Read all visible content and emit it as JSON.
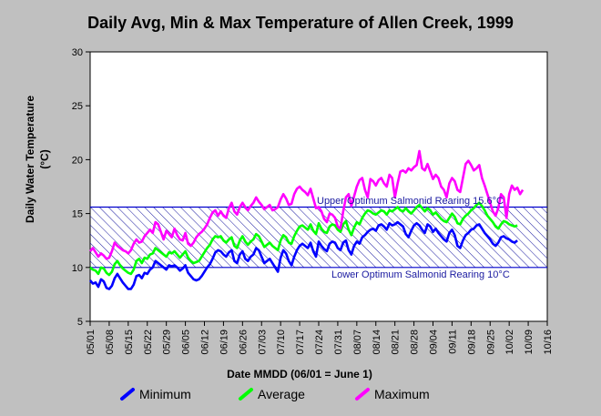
{
  "chart_data": {
    "type": "line",
    "title": "Daily Avg, Min & Max Temperature of Allen Creek, 1999",
    "xlabel": "Date MMDD (06/01 = June 1)",
    "ylabel_line1": "Daily Water Temperature",
    "ylabel_line2": "(°C)",
    "ylim": [
      5,
      30
    ],
    "yticks": [
      "5",
      "10",
      "15",
      "20",
      "25",
      "30"
    ],
    "xticks": [
      "05/01",
      "05/08",
      "05/15",
      "05/22",
      "05/29",
      "06/05",
      "06/12",
      "06/19",
      "06/26",
      "07/03",
      "07/10",
      "07/17",
      "07/24",
      "07/31",
      "08/07",
      "08/14",
      "08/21",
      "08/28",
      "09/04",
      "09/11",
      "09/18",
      "09/25",
      "10/02",
      "10/09",
      "10/16"
    ],
    "grid": false,
    "legend_position": "bottom",
    "band": {
      "lower": 10,
      "upper": 15.6,
      "upper_label": "Upper Optimum Salmonid Rearing 15.6°C",
      "lower_label": "Lower Optimum Salmonid Rearing 10°C",
      "color": "#0000cc"
    },
    "x_start": "05/01",
    "series": [
      {
        "name": "Minimum",
        "color": "#0000ff",
        "values": [
          8.8,
          8.5,
          8.6,
          8.2,
          8.9,
          8.7,
          8.1,
          8.0,
          8.3,
          9.0,
          9.4,
          9.0,
          8.6,
          8.3,
          8.0,
          8.0,
          8.4,
          9.2,
          9.3,
          9.0,
          9.5,
          9.4,
          9.8,
          10.0,
          10.6,
          10.4,
          10.2,
          10.0,
          9.8,
          10.2,
          10.1,
          10.2,
          10.0,
          9.7,
          9.9,
          10.2,
          9.5,
          9.2,
          8.9,
          8.8,
          8.9,
          9.2,
          9.6,
          10.0,
          10.3,
          10.8,
          11.4,
          11.6,
          11.5,
          11.2,
          11.0,
          11.4,
          11.6,
          10.6,
          10.4,
          11.2,
          11.5,
          10.8,
          10.6,
          11.0,
          11.2,
          11.8,
          11.6,
          11.0,
          10.4,
          10.6,
          10.8,
          10.4,
          10.0,
          9.6,
          10.9,
          11.6,
          11.3,
          10.6,
          10.2,
          11.0,
          11.6,
          12.0,
          12.2,
          12.0,
          11.8,
          12.3,
          11.5,
          11.0,
          12.4,
          12.0,
          11.7,
          11.5,
          12.2,
          12.4,
          12.3,
          11.8,
          11.6,
          12.3,
          12.5,
          11.6,
          11.2,
          12.0,
          12.4,
          12.2,
          12.8,
          13.0,
          13.3,
          13.5,
          13.6,
          13.4,
          13.9,
          14.0,
          13.8,
          13.5,
          14.1,
          13.9,
          14.0,
          14.2,
          14.0,
          13.8,
          13.1,
          12.8,
          13.4,
          13.9,
          14.1,
          13.9,
          13.5,
          13.2,
          14.0,
          13.8,
          13.3,
          13.6,
          13.2,
          12.9,
          12.6,
          12.4,
          13.2,
          13.5,
          13.0,
          12.0,
          11.8,
          12.5,
          13.0,
          13.2,
          13.5,
          13.6,
          13.9,
          14.0,
          13.6,
          13.2,
          12.9,
          12.6,
          12.2,
          12.0,
          12.3,
          12.8,
          12.9,
          12.7,
          12.6,
          12.4,
          12.3,
          12.5
        ]
      },
      {
        "name": "Average",
        "color": "#00ff00",
        "values": [
          10.0,
          9.8,
          9.7,
          9.4,
          10.0,
          9.9,
          9.5,
          9.3,
          9.6,
          10.3,
          10.6,
          10.2,
          9.9,
          9.7,
          9.5,
          9.4,
          9.8,
          10.6,
          10.8,
          10.4,
          10.9,
          10.8,
          11.2,
          11.3,
          11.8,
          11.6,
          11.4,
          11.2,
          11.0,
          11.4,
          11.3,
          11.5,
          11.2,
          10.9,
          11.2,
          11.5,
          10.9,
          10.6,
          10.4,
          10.5,
          10.6,
          11.0,
          11.4,
          11.8,
          12.1,
          12.6,
          12.9,
          12.8,
          12.9,
          12.5,
          12.3,
          12.6,
          12.8,
          12.0,
          11.8,
          12.5,
          12.9,
          12.4,
          12.1,
          12.4,
          12.6,
          13.1,
          12.9,
          12.4,
          11.9,
          12.1,
          12.3,
          12.0,
          11.8,
          11.6,
          12.5,
          13.0,
          12.8,
          12.3,
          12.2,
          12.9,
          13.4,
          13.8,
          13.9,
          13.7,
          13.5,
          14.0,
          13.4,
          13.1,
          14.1,
          13.6,
          13.3,
          13.2,
          13.8,
          14.0,
          13.9,
          13.5,
          13.3,
          14.0,
          14.3,
          13.5,
          13.0,
          13.7,
          14.2,
          14.0,
          14.6,
          15.0,
          15.3,
          15.2,
          15.0,
          14.9,
          15.1,
          15.3,
          15.2,
          14.9,
          15.3,
          15.2,
          15.4,
          15.6,
          15.3,
          15.2,
          15.5,
          15.2,
          15.0,
          15.3,
          15.6,
          15.8,
          15.5,
          15.2,
          15.5,
          15.3,
          14.9,
          15.1,
          14.8,
          14.5,
          14.3,
          14.2,
          14.6,
          15.0,
          14.7,
          14.1,
          14.0,
          14.5,
          14.8,
          15.0,
          15.3,
          15.5,
          15.8,
          16.0,
          15.7,
          15.3,
          14.8,
          14.5,
          14.2,
          13.8,
          13.6,
          14.0,
          14.3,
          14.2,
          14.0,
          13.9,
          13.8,
          13.9
        ]
      },
      {
        "name": "Maximum",
        "color": "#ff00ff",
        "values": [
          11.5,
          11.8,
          11.4,
          11.0,
          11.3,
          11.1,
          10.8,
          10.9,
          11.5,
          12.3,
          12.0,
          11.8,
          11.6,
          11.5,
          11.3,
          11.6,
          12.2,
          12.6,
          12.3,
          12.4,
          12.9,
          13.2,
          13.5,
          13.2,
          14.2,
          14.0,
          13.3,
          12.6,
          13.4,
          13.1,
          12.8,
          13.6,
          13.0,
          12.6,
          12.5,
          13.2,
          12.2,
          12.0,
          12.3,
          12.8,
          13.1,
          13.3,
          13.6,
          14.0,
          14.6,
          15.1,
          15.3,
          14.8,
          15.2,
          14.8,
          14.6,
          15.5,
          16.0,
          15.2,
          14.9,
          15.6,
          16.0,
          15.6,
          15.3,
          15.7,
          16.0,
          16.5,
          16.1,
          15.8,
          15.4,
          15.6,
          15.8,
          15.3,
          15.4,
          15.6,
          16.3,
          16.8,
          16.4,
          15.8,
          15.9,
          16.8,
          17.3,
          17.5,
          17.2,
          17.0,
          16.7,
          17.3,
          16.4,
          15.5,
          15.6,
          15.2,
          14.5,
          14.2,
          15.0,
          14.9,
          14.6,
          13.8,
          13.6,
          15.2,
          16.5,
          16.8,
          15.7,
          16.6,
          17.5,
          18.1,
          18.3,
          17.2,
          16.5,
          18.2,
          18.0,
          17.6,
          18.1,
          18.3,
          17.8,
          17.5,
          18.6,
          18.3,
          16.5,
          17.8,
          18.9,
          19.0,
          18.8,
          19.2,
          19.0,
          19.3,
          19.5,
          20.8,
          19.2,
          19.0,
          19.6,
          18.9,
          18.2,
          18.6,
          18.3,
          17.5,
          17.2,
          16.5,
          17.8,
          18.3,
          18.0,
          17.2,
          17.0,
          18.3,
          19.6,
          19.9,
          19.5,
          19.0,
          19.2,
          19.5,
          18.3,
          17.6,
          16.8,
          16.0,
          15.2,
          14.8,
          15.5,
          16.8,
          16.5,
          14.6,
          16.8,
          17.6,
          17.2,
          17.4,
          16.8,
          17.2
        ]
      }
    ]
  }
}
